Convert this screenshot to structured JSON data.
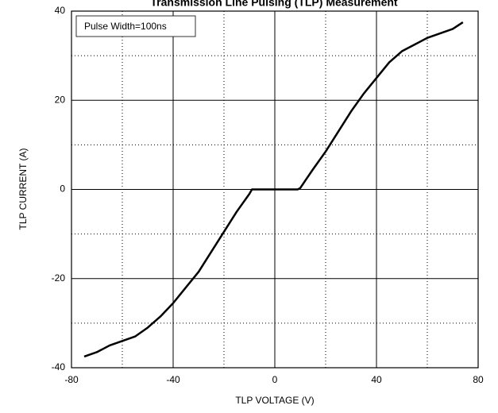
{
  "chart_data": {
    "type": "line",
    "title": "Transmission Line Pulsing (TLP) Measurement",
    "annotation": "Pulse Width=100ns",
    "x_label": "TLP VOLTAGE   (V)",
    "y_label": "TLP CURRENT  (A)",
    "xlim": [
      -80,
      80
    ],
    "ylim": [
      -40,
      40
    ],
    "xticks": [
      -80,
      -40,
      0,
      40,
      80
    ],
    "yticks": [
      -40,
      -20,
      0,
      20,
      40
    ],
    "x_minor_grid": [
      -60,
      -20,
      20,
      60
    ],
    "y_minor_grid": [
      -30,
      -10,
      10,
      30
    ],
    "grid": true,
    "series": [
      {
        "color": "#000000",
        "x": [
          -75,
          -70,
          -65,
          -60,
          -55,
          -50,
          -45,
          -40,
          -35,
          -30,
          -25,
          -20,
          -15,
          -10,
          -9,
          -5,
          0,
          5,
          9,
          10,
          12,
          15,
          20,
          25,
          30,
          35,
          40,
          45,
          50,
          55,
          60,
          65,
          70,
          74
        ],
        "values": [
          -37.5,
          -36.5,
          -35,
          -34,
          -33,
          -31,
          -28.5,
          -25.5,
          -22,
          -18.5,
          -14,
          -9.5,
          -5,
          -1,
          0,
          0,
          0,
          0,
          0,
          0.3,
          2,
          4.5,
          8.5,
          13,
          17.5,
          21.5,
          25,
          28.5,
          31,
          32.5,
          34,
          35,
          36,
          37.5
        ]
      }
    ]
  }
}
